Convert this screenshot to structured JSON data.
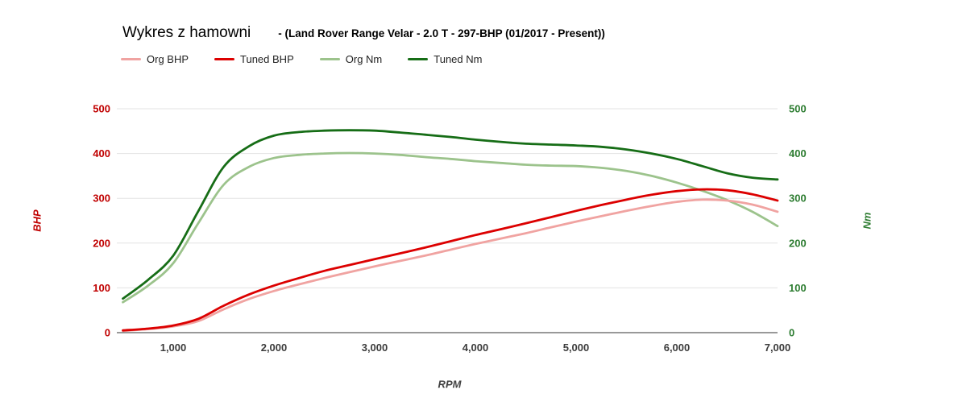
{
  "header": {
    "title": "Wykres z hamowni",
    "subtitle": "- (Land Rover Range Velar - 2.0 T - 297-BHP (01/2017 - Present))"
  },
  "legend": {
    "items": [
      {
        "label": "Org BHP",
        "color": "#f0a3a1"
      },
      {
        "label": "Tuned BHP",
        "color": "#dc0000"
      },
      {
        "label": "Org Nm",
        "color": "#9cc38c"
      },
      {
        "label": "Tuned Nm",
        "color": "#166d16"
      }
    ]
  },
  "chart_data": {
    "type": "line",
    "title": "Wykres z hamowni - (Land Rover Range Velar - 2.0 T - 297-BHP (01/2017 - Present))",
    "grid": true,
    "legend_position": "top",
    "x_axis": {
      "label": "RPM",
      "range": [
        500,
        7000
      ],
      "ticks": [
        {
          "value": 1000,
          "label": "1,000"
        },
        {
          "value": 2000,
          "label": "2,000"
        },
        {
          "value": 3000,
          "label": "3,000"
        },
        {
          "value": 4000,
          "label": "4,000"
        },
        {
          "value": 5000,
          "label": "5,000"
        },
        {
          "value": 6000,
          "label": "6,000"
        },
        {
          "value": 7000,
          "label": "7,000"
        }
      ]
    },
    "left_axis": {
      "label": "BHP",
      "color": "#c00000",
      "range": [
        0,
        500
      ],
      "ticks": [
        0,
        100,
        200,
        300,
        400,
        500
      ]
    },
    "right_axis": {
      "label": "Nm",
      "color": "#2e7d32",
      "range": [
        0,
        500
      ],
      "ticks": [
        0,
        100,
        200,
        300,
        400,
        500
      ]
    },
    "x": [
      500,
      750,
      1000,
      1250,
      1500,
      1750,
      2000,
      2250,
      2500,
      2750,
      3000,
      3250,
      3500,
      3750,
      4000,
      4250,
      4500,
      4750,
      5000,
      5250,
      5500,
      5750,
      6000,
      6250,
      6500,
      6750,
      7000
    ],
    "series": [
      {
        "name": "Org BHP",
        "axis": "left",
        "color": "#f0a3a1",
        "values": [
          4,
          8,
          14,
          26,
          52,
          75,
          93,
          108,
          122,
          135,
          148,
          160,
          172,
          185,
          198,
          210,
          222,
          235,
          248,
          260,
          272,
          283,
          292,
          297,
          295,
          286,
          270
        ]
      },
      {
        "name": "Tuned BHP",
        "axis": "left",
        "color": "#dc0000",
        "values": [
          5,
          9,
          16,
          31,
          60,
          85,
          105,
          122,
          138,
          151,
          164,
          177,
          190,
          204,
          218,
          231,
          244,
          258,
          272,
          285,
          297,
          308,
          316,
          320,
          318,
          309,
          295
        ]
      },
      {
        "name": "Org Nm",
        "axis": "right",
        "color": "#9cc38c",
        "values": [
          68,
          105,
          155,
          245,
          330,
          370,
          390,
          397,
          400,
          401,
          400,
          397,
          392,
          388,
          383,
          379,
          375,
          373,
          372,
          368,
          361,
          350,
          335,
          317,
          296,
          270,
          238
        ]
      },
      {
        "name": "Tuned Nm",
        "axis": "right",
        "color": "#166d16",
        "values": [
          76,
          118,
          172,
          272,
          370,
          416,
          440,
          448,
          451,
          452,
          451,
          447,
          442,
          437,
          431,
          426,
          422,
          420,
          418,
          415,
          409,
          400,
          388,
          372,
          356,
          346,
          342
        ]
      }
    ]
  }
}
